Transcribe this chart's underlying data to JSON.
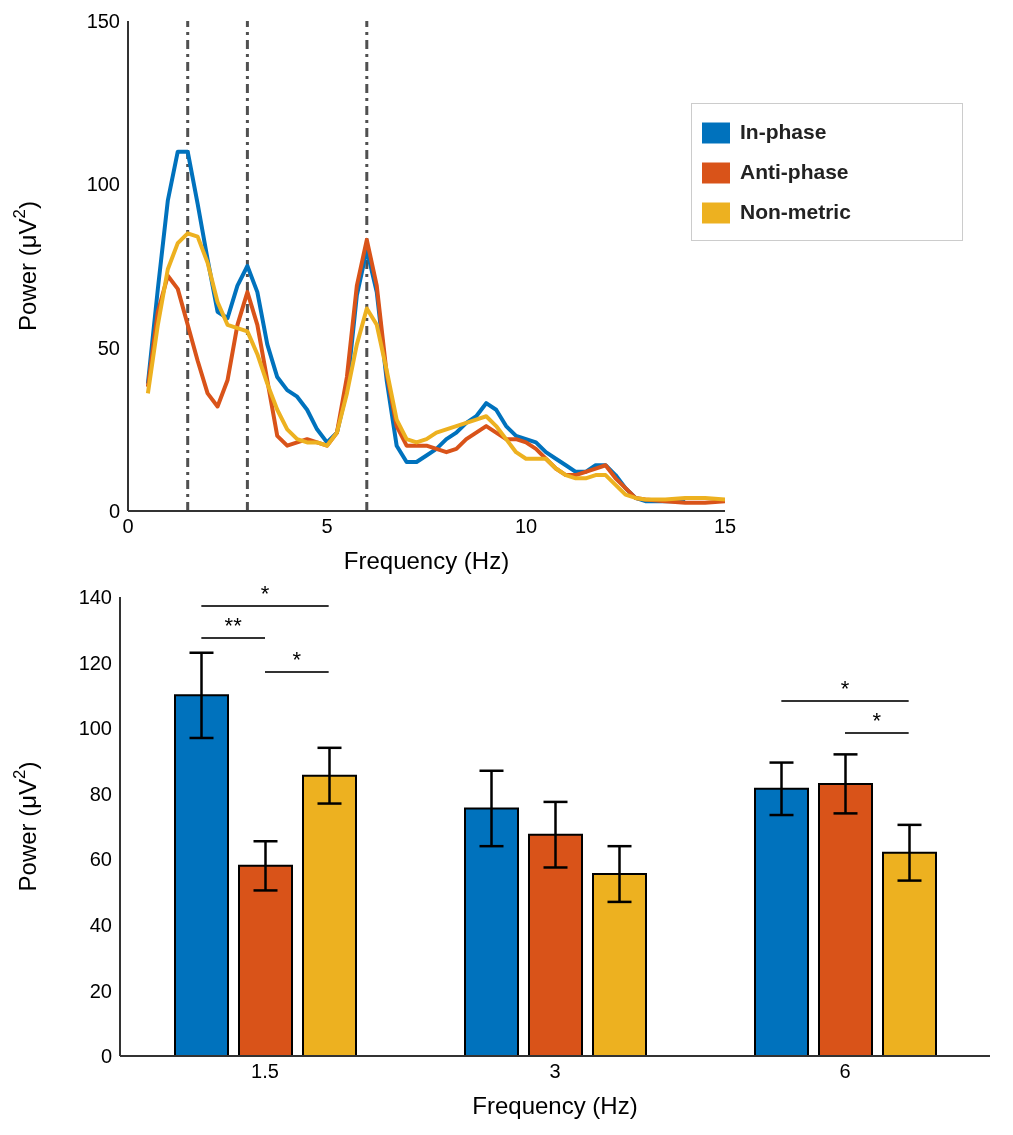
{
  "chart_data": [
    {
      "type": "line",
      "xlabel": "Frequency (Hz)",
      "ylabel": "Power (μV$^{2}$)",
      "x": [
        0.5,
        0.75,
        1,
        1.25,
        1.5,
        1.75,
        2,
        2.25,
        2.5,
        2.75,
        3,
        3.25,
        3.5,
        3.75,
        4,
        4.25,
        4.5,
        4.75,
        5,
        5.25,
        5.5,
        5.75,
        6,
        6.25,
        6.5,
        6.75,
        7,
        7.25,
        7.5,
        7.75,
        8,
        8.25,
        8.5,
        8.75,
        9,
        9.25,
        9.5,
        9.75,
        10,
        10.25,
        10.5,
        10.75,
        11,
        11.25,
        11.5,
        11.75,
        12,
        12.25,
        12.5,
        12.75,
        13,
        13.5,
        14,
        14.5,
        15
      ],
      "series": [
        {
          "name": "In-phase",
          "color": "#0072bd",
          "values": [
            39,
            68,
            95,
            110,
            110,
            94,
            77,
            61,
            59,
            69,
            75,
            67,
            51,
            41,
            37,
            35,
            31,
            25,
            21,
            24,
            37,
            66,
            80,
            67,
            40,
            20,
            15,
            15,
            17,
            19,
            22,
            24,
            27,
            29,
            33,
            31,
            26,
            23,
            22,
            21,
            18,
            16,
            14,
            12,
            12,
            14,
            14,
            11,
            7,
            4,
            3,
            3,
            3,
            null,
            null
          ]
        },
        {
          "name": "Anti-phase",
          "color": "#d95319",
          "values": [
            38,
            61,
            72,
            68,
            57,
            46,
            36,
            32,
            40,
            57,
            67,
            57,
            40,
            23,
            20,
            21,
            22,
            21,
            20,
            24,
            41,
            69,
            83,
            69,
            42,
            26,
            20,
            20,
            20,
            19,
            18,
            19,
            22,
            24,
            26,
            24,
            22,
            22,
            21,
            19,
            16,
            13,
            11,
            11,
            12,
            13,
            14,
            10,
            7,
            4,
            3.5,
            3,
            2.5,
            2.5,
            3
          ]
        },
        {
          "name": "Non-metric",
          "color": "#edb120",
          "values": [
            36,
            57,
            74,
            82,
            85,
            84,
            76,
            64,
            57,
            56,
            55,
            48,
            39,
            31,
            25,
            22,
            21,
            21,
            20,
            24,
            36,
            51,
            62,
            57,
            43,
            28,
            22,
            21,
            22,
            24,
            25,
            26,
            27,
            28,
            29,
            26,
            22,
            18,
            16,
            16,
            16,
            13,
            11,
            10,
            10,
            11,
            11,
            8,
            5,
            4,
            3.5,
            3.5,
            4,
            4,
            3.5
          ]
        }
      ],
      "xlim": [
        0,
        15
      ],
      "xticks": [
        0,
        5,
        10,
        15
      ],
      "ylim": [
        0,
        150
      ],
      "yticks": [
        0,
        50,
        100,
        150
      ],
      "ref_lines": [
        {
          "axis": "x",
          "value": 1.5,
          "color": "#505050",
          "line_style": "dashed"
        },
        {
          "axis": "x",
          "value": 3,
          "color": "#505050",
          "line_style": "dashed"
        },
        {
          "axis": "x",
          "value": 6,
          "color": "#505050",
          "line_style": "dashed"
        }
      ],
      "legend": "top right",
      "line_style": "solid",
      "marker": "none"
    },
    {
      "type": "bar",
      "xlabel": "Frequency (Hz)",
      "ylabel": "Power (μV$^{2}$)",
      "categories": [
        "1.5",
        "3",
        "6"
      ],
      "series": [
        {
          "color": "#0072bd",
          "values": [
            110,
            75.5,
            81.5
          ],
          "errors": [
            13,
            11.5,
            8
          ]
        },
        {
          "color": "#d95319",
          "values": [
            58,
            67.5,
            83
          ],
          "errors": [
            7.5,
            10,
            9
          ]
        },
        {
          "color": "#edb120",
          "values": [
            85.5,
            55.5,
            62
          ],
          "errors": [
            8.5,
            8.5,
            8.5
          ]
        }
      ],
      "ylim": [
        0,
        140
      ],
      "yticks": [
        0,
        20,
        40,
        60,
        80,
        100,
        120,
        140
      ],
      "annotations": [
        "*",
        "**",
        "*",
        "*",
        "*"
      ]
    }
  ]
}
